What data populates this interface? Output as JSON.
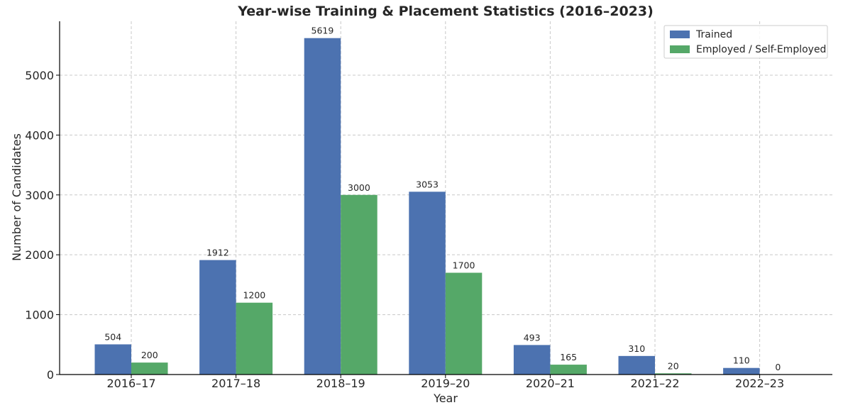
{
  "chart_data": {
    "type": "bar",
    "title": "Year-wise Training & Placement Statistics (2016–2023)",
    "xlabel": "Year",
    "ylabel": "Number of Candidates",
    "categories": [
      "2016–17",
      "2017–18",
      "2018–19",
      "2019–20",
      "2020–21",
      "2021–22",
      "2022–23"
    ],
    "series": [
      {
        "name": "Trained",
        "values": [
          504,
          1912,
          5619,
          3053,
          493,
          310,
          110
        ],
        "color": "#4c72b0"
      },
      {
        "name": "Employed / Self-Employed",
        "values": [
          200,
          1200,
          3000,
          1700,
          165,
          20,
          0
        ],
        "color": "#55a868"
      }
    ],
    "ylim": [
      0,
      5900
    ],
    "yticks": [
      0,
      1000,
      2000,
      3000,
      4000,
      5000
    ],
    "grid": true,
    "legend_position": "top-right"
  }
}
